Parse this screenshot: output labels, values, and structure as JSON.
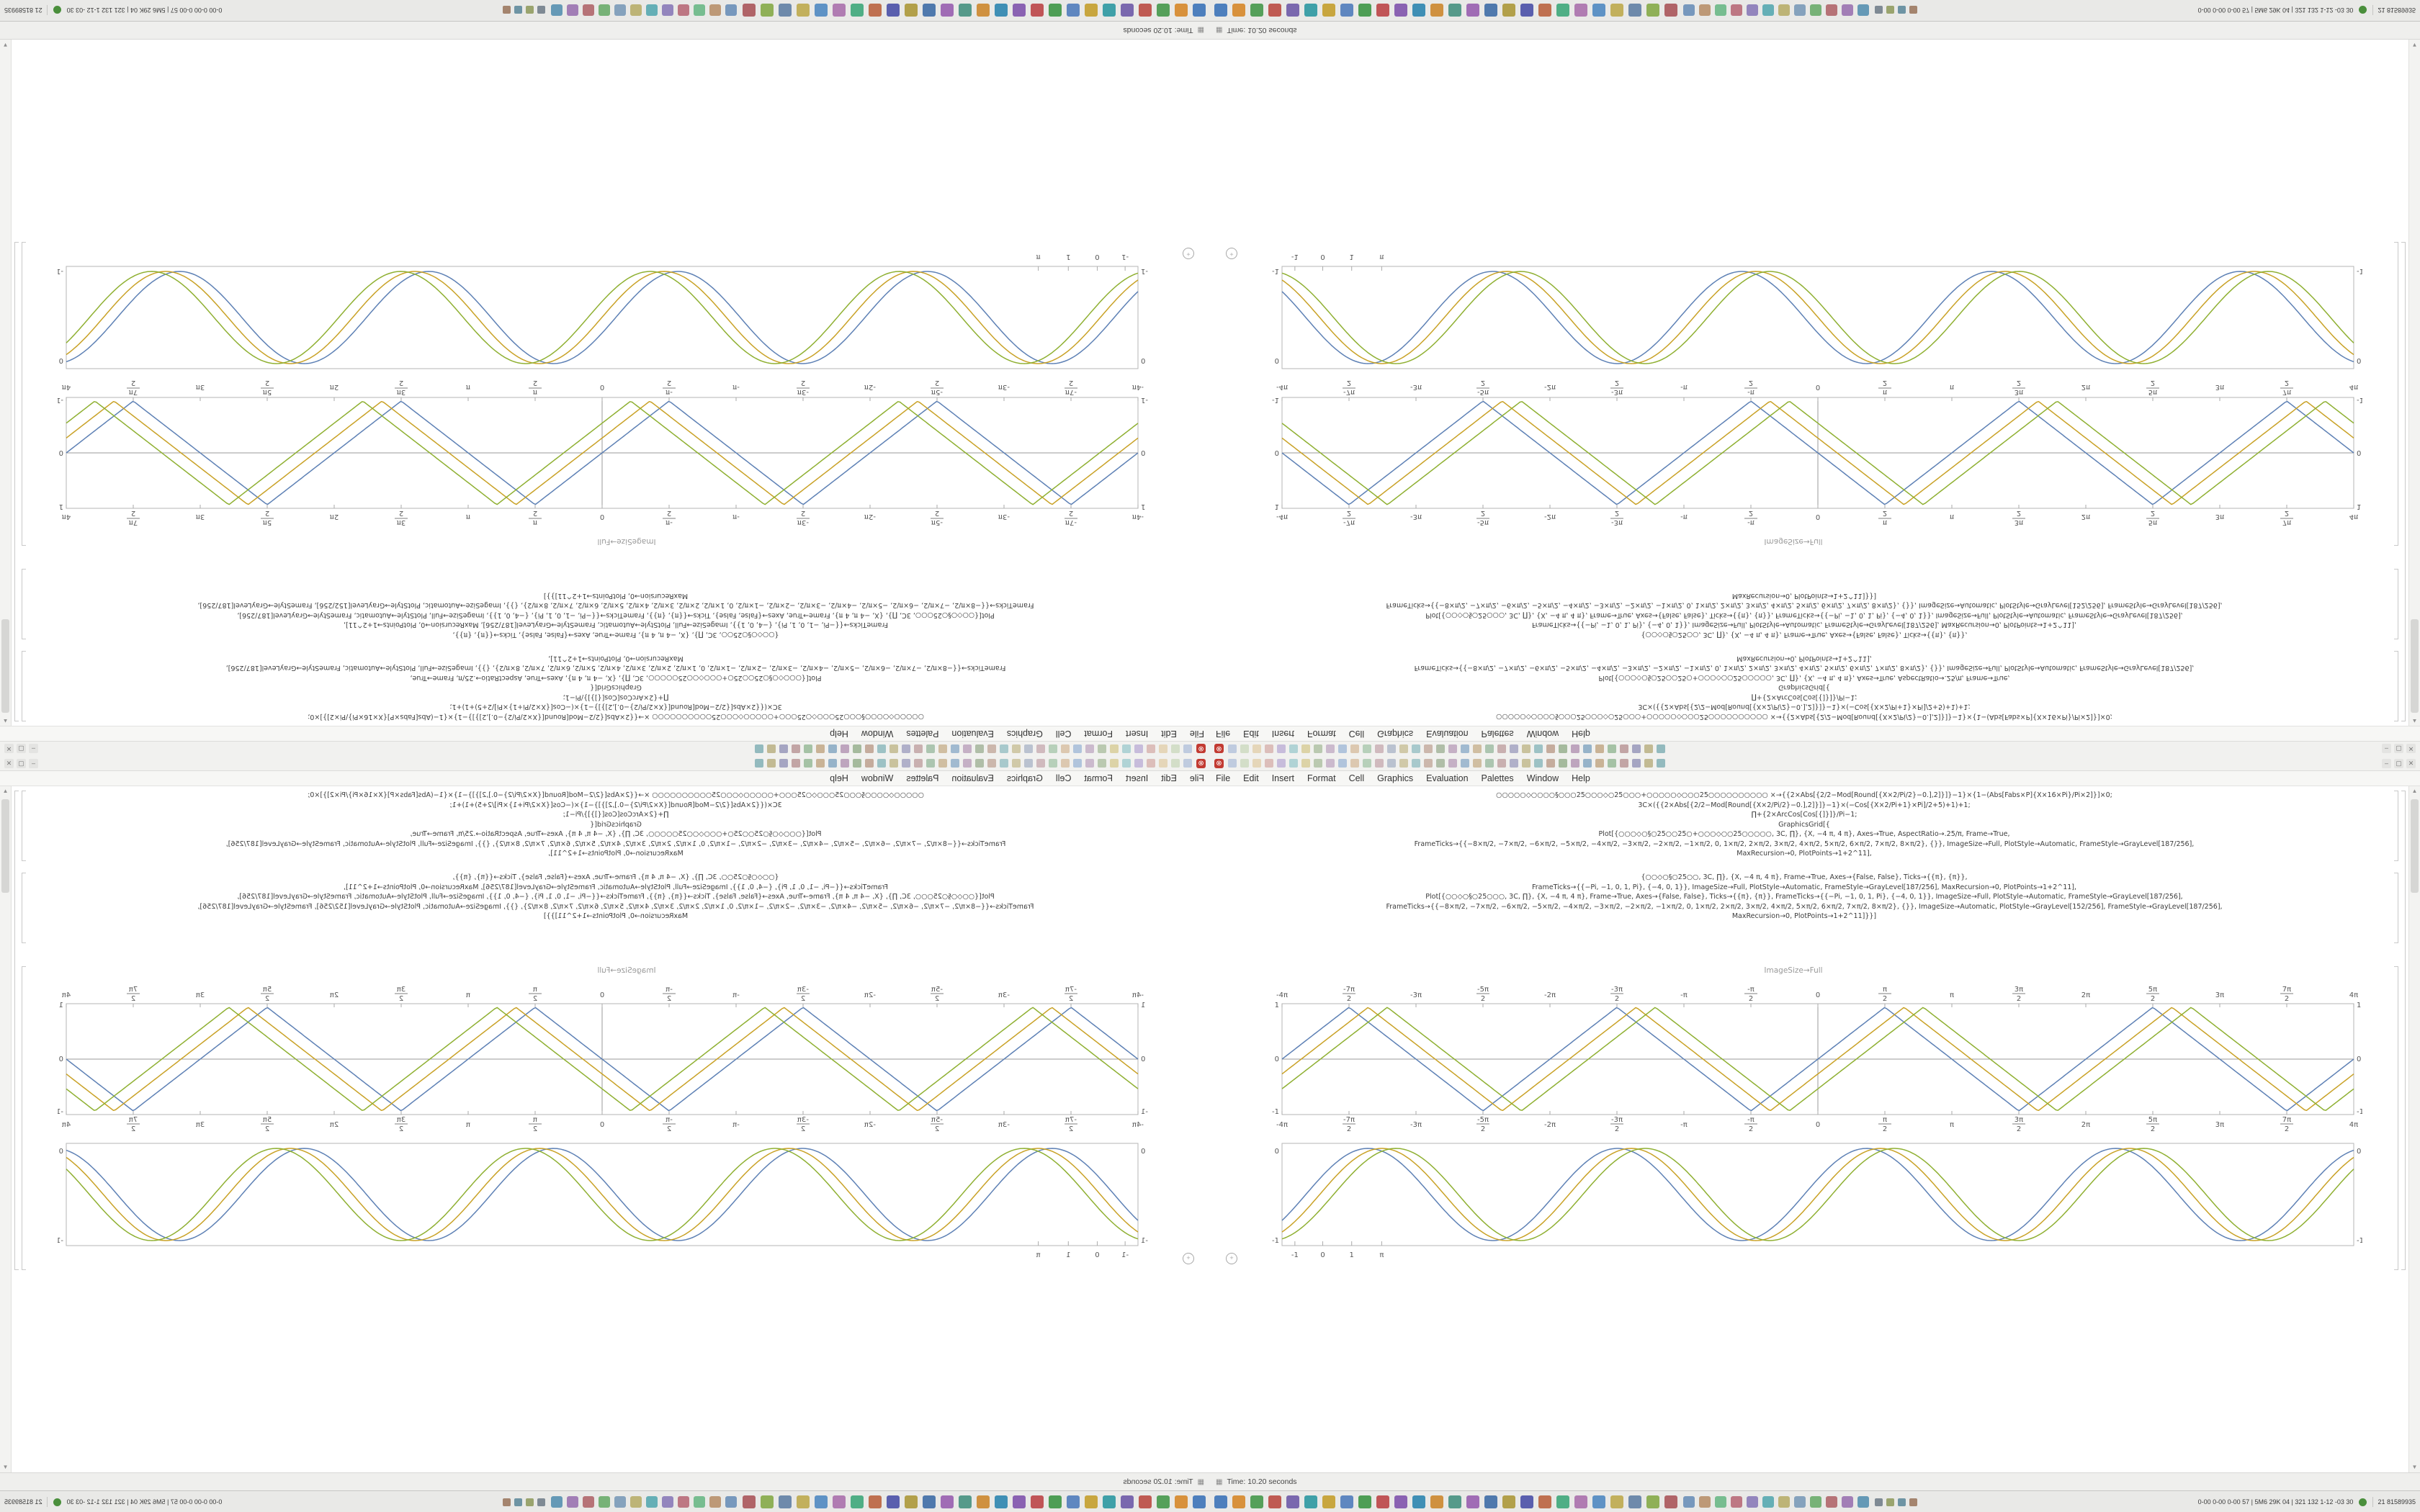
{
  "window": {
    "menu_items": [
      "File",
      "Edit",
      "Insert",
      "Format",
      "Cell",
      "Graphics",
      "Evaluation",
      "Palettes",
      "Window",
      "Help"
    ],
    "toolbar": {
      "abort_icon": "⊗",
      "icon_colors": [
        "#b9c7dd",
        "#cfdcc3",
        "#e3d3b2",
        "#d9b8b4",
        "#c2b6d8",
        "#a9cfd2",
        "#d9cf9f",
        "#b4c4a8",
        "#c7b4c9",
        "#a8bfd9",
        "#d9c3a8",
        "#b0ccb4",
        "#ccb4b8",
        "#b4bccc",
        "#ccc4a0",
        "#a0c4c8",
        "#c8b0a4",
        "#a8b8a0",
        "#c0a8c0",
        "#98b4cc",
        "#ccb898",
        "#a4c0a8",
        "#c4a8a8",
        "#a8a8c4",
        "#c4bc94",
        "#94bcc0",
        "#c0a494",
        "#9cb494",
        "#b89cb8",
        "#8cacc4",
        "#c4ac8c",
        "#9cbc9c",
        "#bc9c9c",
        "#9c9cbc",
        "#bcb488",
        "#88b4b8"
      ],
      "window_controls": [
        {
          "name": "minimize",
          "glyph": "–"
        },
        {
          "name": "maximize",
          "glyph": "▢"
        },
        {
          "name": "close",
          "glyph": "✕"
        }
      ]
    },
    "status": {
      "icon": "▦",
      "time_text": "Time: 10.20 seconds"
    }
  },
  "notebook": {
    "caption": "ImageSize→Full",
    "code_cell_a": {
      "lines": [
        "○○○○○◇○○○○§○○○25○○○◇○25○○○+○○○○○◇○○○25○○○○○○○○○○  ×→{{2×Abs[{2/2−Mod[Round[{X×2/Pi/2}−0.],2]}]}−1}×{1−(Abs[Fabs×P]{X×16×Pi}/Pi×2]}]×0;",
        "3C×({{2×Abs[{2/2−Mod[Round[{X×2/Pi/2}−0.],2]}]}−1}×(−Cos[{X×2/Pi+1}×Pi]/2+5)+1)+1;",
        "∏+{2×ArcCos[Cos[{]}]}/Pi−1;",
        "GraphicsGrid[{",
        "Plot[{○○○◇○§○25○○25○+○○○◇○○25○○○○○, 3C, ∏}, {X, −4 π, 4 π}, Axes→True, AspectRatio→.25/π, Frame→True,",
        "FrameTicks→{{−8×π/2, −7×π/2, −6×π/2, −5×π/2, −4×π/2, −3×π/2, −2×π/2, −1×π/2, 0, 1×π/2, 2×π/2, 3×π/2, 4×π/2, 5×π/2, 6×π/2, 7×π/2, 8×π/2}, {}}, ImageSize→Full, PlotStyle→Automatic, FrameStyle→GrayLevel[187/256],",
        "MaxRecursion→0, PlotPoints→1+2^11],"
      ]
    },
    "code_cell_b": {
      "lines": [
        "{○○◇○§○25○○, 3C, ∏}, {X, −4 π, 4 π}, Frame→True, Axes→{False, False}, Ticks→{{π}, {π}},",
        "FrameTicks→{{−Pi, −1, 0, 1, Pi}, {−4, 0, 1}}, ImageSize→Full, PlotStyle→Automatic, FrameStyle→GrayLevel[187/256], MaxRecursion→0, PlotPoints→1+2^11],",
        "Plot[{○○◇○§○25○○○, 3C, ∏}, {X, −4 π, 4 π}, Frame→True, Axes→{False, False}, Ticks→{{π}, {π}}, FrameTicks→{{−Pi, −1, 0, 1, Pi}, {−4, 0, 1}}, ImageSize→Full, PlotStyle→Automatic, FrameStyle→GrayLevel[187/256],",
        "FrameTicks→{{−8×π/2, −7×π/2, −6×π/2, −5×π/2, −4×π/2, −3×π/2, −2×π/2, −1×π/2, 0, 1×π/2, 2×π/2, 3×π/2, 4×π/2, 5×π/2, 6×π/2, 7×π/2, 8×π/2}, {}}, ImageSize→Automatic, PlotStyle→GrayLevel[152/256], FrameStyle→GrayLevel[187/256],",
        "MaxRecursion→0, PlotPoints→1+2^11]}}]"
      ]
    }
  },
  "chart_data": [
    {
      "type": "line",
      "title": "",
      "wave": "triangle",
      "x_min": -12.566,
      "x_max": 12.566,
      "x_tick_labels": [
        "-4π",
        "-7π/2",
        "-3π",
        "-5π/2",
        "-2π",
        "-3π/2",
        "-π",
        "-π/2",
        "0",
        "π/2",
        "π",
        "3π/2",
        "2π",
        "5π/2",
        "3π",
        "7π/2",
        "4π"
      ],
      "y_tick_labels": [
        "1",
        "0",
        "-1"
      ],
      "ylim": [
        -1,
        1
      ],
      "frame": true,
      "axes": true,
      "series": [
        {
          "name": "triangle-wave-1",
          "kind": "triangle",
          "phase": 0,
          "color": "#5e81b5"
        },
        {
          "name": "triangle-wave-2",
          "kind": "triangle",
          "phase": 0.45,
          "color": "#c9a227"
        },
        {
          "name": "triangle-wave-3",
          "kind": "triangle",
          "phase": 0.9,
          "color": "#8fb032"
        }
      ]
    },
    {
      "type": "line",
      "title": "",
      "wave": "sine",
      "periods": 4.3,
      "x_tick_labels": [
        "-1",
        "0",
        "1",
        "π"
      ],
      "x_tick_pos": [
        0.012,
        0.038,
        0.065,
        0.093
      ],
      "y_labels_left": [
        "0",
        "-1"
      ],
      "y_labels_right": [
        "0",
        "-1"
      ],
      "ylim": [
        -1,
        1
      ],
      "frame": true,
      "axes": false,
      "series": [
        {
          "name": "sine-wave-1",
          "kind": "sine",
          "phase": -0.6,
          "color": "#5e81b5"
        },
        {
          "name": "sine-wave-2",
          "kind": "sine",
          "phase": -0.95,
          "color": "#c9a227"
        },
        {
          "name": "sine-wave-3",
          "kind": "sine",
          "phase": -1.3,
          "color": "#8fb032"
        }
      ]
    }
  ],
  "taskbar": {
    "app_icon_colors": [
      "#4d7fbd",
      "#d8913c",
      "#55a05a",
      "#bf5a52",
      "#7a68ae",
      "#3fa0a8",
      "#c8a63f",
      "#5f87c0",
      "#4e9e55",
      "#c05557",
      "#8a62b2",
      "#3f8fb5",
      "#cf9140",
      "#569a8a",
      "#a06cb5",
      "#4f79ad",
      "#b2a04a",
      "#5a5fae",
      "#bf7050",
      "#4fae85",
      "#b07cb2",
      "#5e92c5",
      "#c2b05c",
      "#6e8aab",
      "#8fb057",
      "#b06468"
    ],
    "secondary_icon_colors": [
      "#6a8fb8",
      "#b8906a",
      "#6ab886",
      "#b86a78",
      "#8a7ab8",
      "#56a8b0",
      "#b8ae6a",
      "#7a9ab8",
      "#6aac6a",
      "#b0666a",
      "#9a72b0",
      "#5690b0"
    ],
    "tray_icon_colors": [
      "#7f8a94",
      "#9aa46e",
      "#6e94a4",
      "#a4846e"
    ],
    "right_stats": "0-00 0-00 0-00 57 | 5M6 29K 04 | 321 132 1-12 -03 30",
    "corner_text": "21 81589935",
    "monitor_icon_color": "#4a8f3c"
  },
  "colors": {
    "accent_red": "#c23b32",
    "plot_blue": "#5e81b5",
    "plot_gold": "#c9a227",
    "plot_green": "#8fb032",
    "frame_gray": "#b6b6b6"
  }
}
